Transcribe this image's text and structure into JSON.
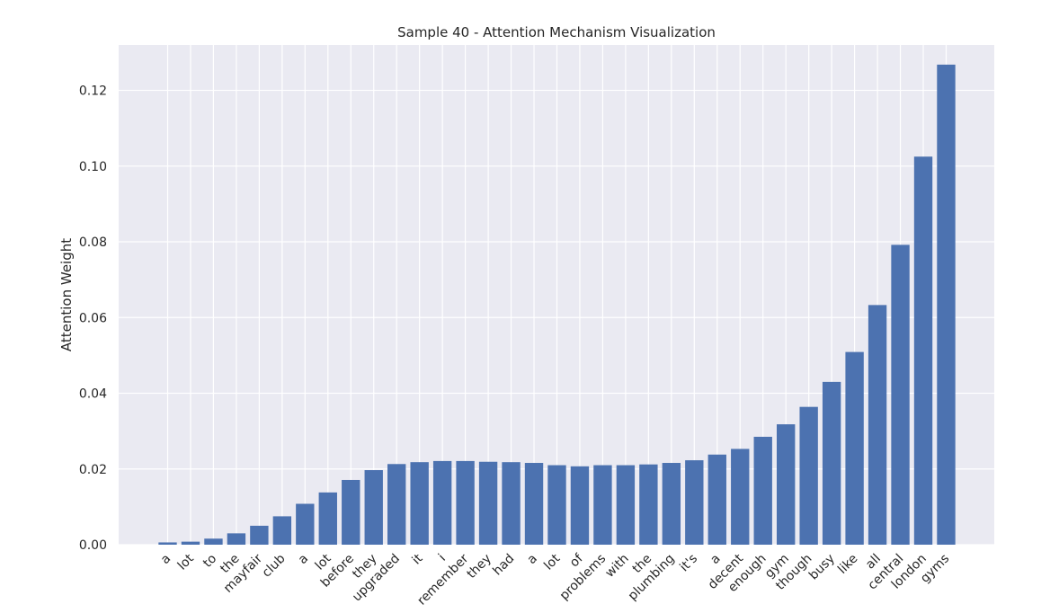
{
  "chart_data": {
    "type": "bar",
    "title": "Sample 40 - Attention Mechanism Visualization",
    "xlabel": "",
    "ylabel": "Attention Weight",
    "ylim": [
      0,
      0.132
    ],
    "yticks": [
      "0.00",
      "0.02",
      "0.04",
      "0.06",
      "0.08",
      "0.10",
      "0.12"
    ],
    "grid": true,
    "bar_color": "#4c72b0",
    "background_color": "#eaeaf2",
    "categories": [
      "a",
      "lot",
      "to",
      "the",
      "mayfair",
      "club",
      "a",
      "lot",
      "before",
      "they",
      "upgraded",
      "it",
      "i",
      "remember",
      "they",
      "had",
      "a",
      "lot",
      "of",
      "problems",
      "with",
      "the",
      "plumbing",
      "it's",
      "a",
      "decent",
      "enough",
      "gym",
      "though",
      "busy",
      "like",
      "all",
      "central",
      "london",
      "gyms"
    ],
    "values": [
      0.0006,
      0.0008,
      0.0016,
      0.003,
      0.005,
      0.0075,
      0.0108,
      0.0138,
      0.0171,
      0.0197,
      0.0213,
      0.0218,
      0.0221,
      0.0221,
      0.0219,
      0.0218,
      0.0216,
      0.021,
      0.0207,
      0.021,
      0.021,
      0.0212,
      0.0216,
      0.0223,
      0.0238,
      0.0253,
      0.0285,
      0.0318,
      0.0364,
      0.043,
      0.0509,
      0.0633,
      0.0792,
      0.1025,
      0.1268
    ]
  }
}
